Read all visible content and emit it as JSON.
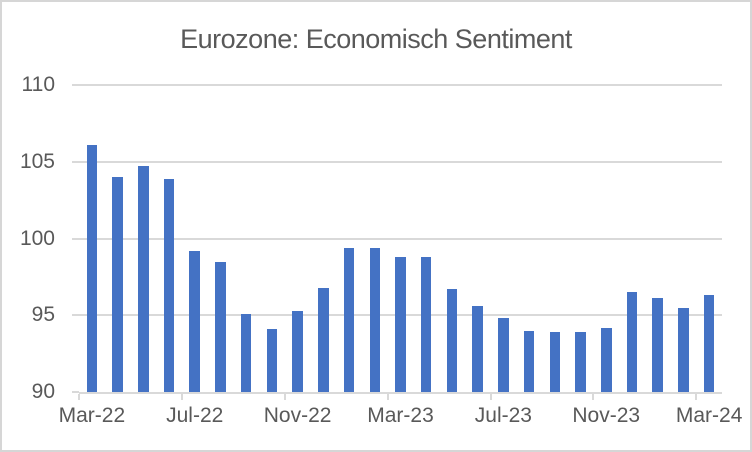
{
  "chart_data": {
    "type": "bar",
    "title": "Eurozone: Economisch Sentiment",
    "categories": [
      "Mar-22",
      "Apr-22",
      "May-22",
      "Jun-22",
      "Jul-22",
      "Aug-22",
      "Sep-22",
      "Oct-22",
      "Nov-22",
      "Dec-22",
      "Jan-23",
      "Feb-23",
      "Mar-23",
      "Apr-23",
      "May-23",
      "Jun-23",
      "Jul-23",
      "Aug-23",
      "Sep-23",
      "Oct-23",
      "Nov-23",
      "Dec-23",
      "Jan-24",
      "Feb-24",
      "Mar-24"
    ],
    "values": [
      106.1,
      104.0,
      104.7,
      103.9,
      99.2,
      98.5,
      95.1,
      94.1,
      95.3,
      96.8,
      99.4,
      99.4,
      98.8,
      98.8,
      96.7,
      95.6,
      94.8,
      94.0,
      93.9,
      93.9,
      94.2,
      96.5,
      96.1,
      95.5,
      96.3
    ],
    "visible_x_tick_labels": [
      "Mar-22",
      "Jul-22",
      "Nov-22",
      "Mar-23",
      "Jul-23",
      "Nov-23",
      "Mar-24"
    ],
    "x_label_interval": 4,
    "y_ticks": [
      "90",
      "95",
      "100",
      "105",
      "110"
    ],
    "ylim": [
      90,
      110
    ],
    "xlabel": "",
    "ylabel": "",
    "grid": "horizontal",
    "legend_position": "none",
    "colors": {
      "bar": "#4472C4",
      "gridline": "#D9D9D9",
      "text": "#595959",
      "frame_border": "#D6D6D6",
      "background": "#FFFFFF"
    }
  }
}
